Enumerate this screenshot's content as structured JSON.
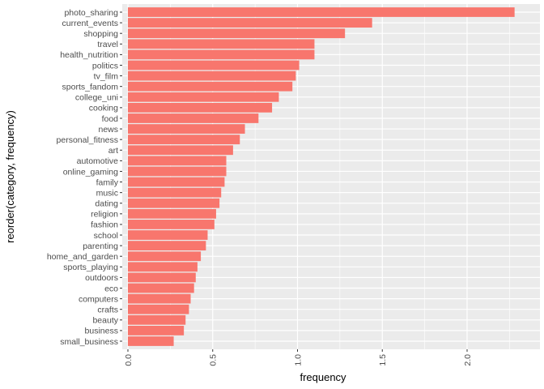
{
  "chart_data": {
    "type": "bar",
    "orientation": "horizontal",
    "xlabel": "frequency",
    "ylabel": "reorder(category, frequency)",
    "xlim": [
      0,
      2.37
    ],
    "x_ticks": [
      "0.0",
      "0.5",
      "1.0",
      "1.5",
      "2.0"
    ],
    "x_tick_values": [
      0,
      0.5,
      1.0,
      1.5,
      2.0
    ],
    "grid": true,
    "bar_color": "#F8766D",
    "panel_color": "#EBEBEB",
    "categories": [
      "photo_sharing",
      "current_events",
      "shopping",
      "travel",
      "health_nutrition",
      "politics",
      "tv_film",
      "sports_fandom",
      "college_uni",
      "cooking",
      "food",
      "news",
      "personal_fitness",
      "art",
      "automotive",
      "online_gaming",
      "family",
      "music",
      "dating",
      "religion",
      "fashion",
      "school",
      "parenting",
      "home_and_garden",
      "sports_playing",
      "outdoors",
      "eco",
      "computers",
      "crafts",
      "beauty",
      "business",
      "small_business"
    ],
    "values": [
      2.28,
      1.44,
      1.28,
      1.1,
      1.1,
      1.01,
      0.99,
      0.97,
      0.89,
      0.85,
      0.77,
      0.69,
      0.66,
      0.62,
      0.58,
      0.58,
      0.57,
      0.55,
      0.54,
      0.52,
      0.51,
      0.47,
      0.46,
      0.43,
      0.41,
      0.4,
      0.39,
      0.37,
      0.36,
      0.34,
      0.33,
      0.27
    ]
  }
}
